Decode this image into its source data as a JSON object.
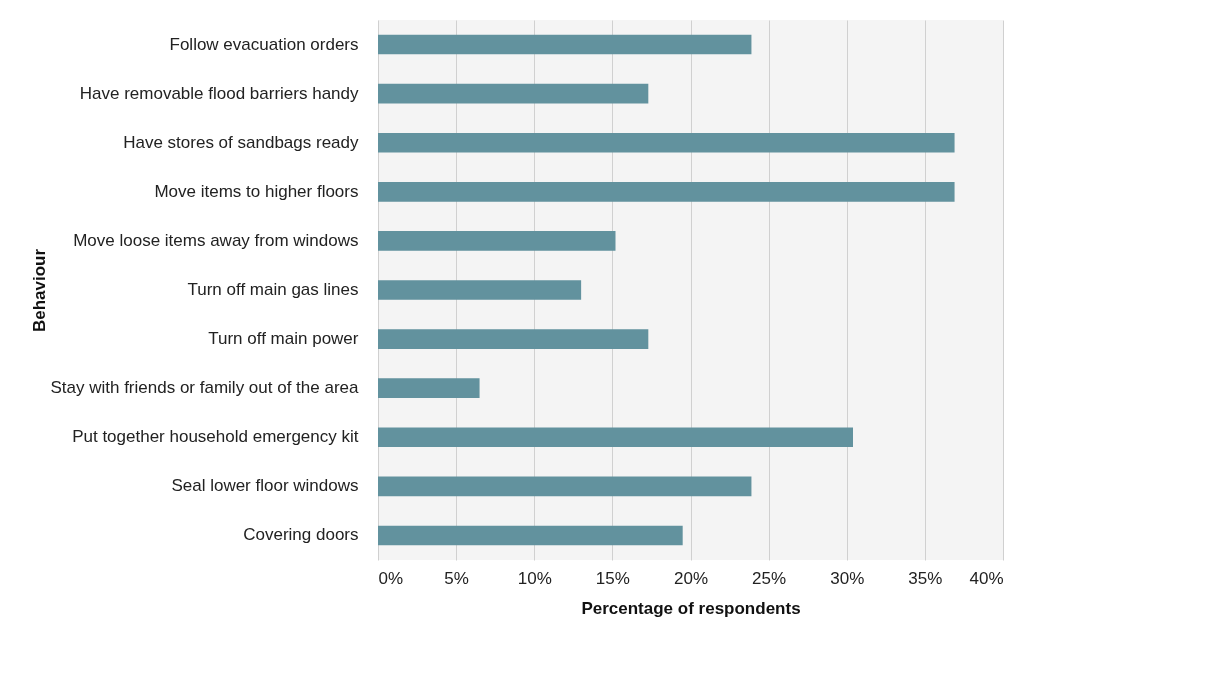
{
  "chart_data": {
    "type": "bar",
    "orientation": "horizontal",
    "xlabel": "Percentage of respondents",
    "ylabel": "Behaviour",
    "categories": [
      "Follow evacuation orders",
      "Have removable flood barriers handy",
      "Have stores of sandbags ready",
      "Move items to higher floors",
      "Move loose items away from windows",
      "Turn off main gas lines",
      "Turn off main power",
      "Stay with friends or family out of the area",
      "Put together household emergency kit",
      "Seal lower floor windows",
      "Covering doors"
    ],
    "values": [
      23.9,
      17.3,
      36.9,
      36.9,
      15.2,
      13.0,
      17.3,
      6.5,
      30.4,
      23.9,
      19.5
    ],
    "color": "#62929e",
    "xlim": [
      0,
      40
    ],
    "xticks": [
      {
        "value": 0,
        "label": "0%"
      },
      {
        "value": 5,
        "label": "5%"
      },
      {
        "value": 10,
        "label": "10%"
      },
      {
        "value": 15,
        "label": "15%"
      },
      {
        "value": 20,
        "label": "20%"
      },
      {
        "value": 25,
        "label": "25%"
      },
      {
        "value": 30,
        "label": "30%"
      },
      {
        "value": 35,
        "label": "35%"
      },
      {
        "value": 40,
        "label": "40%"
      }
    ],
    "grid": "x"
  }
}
